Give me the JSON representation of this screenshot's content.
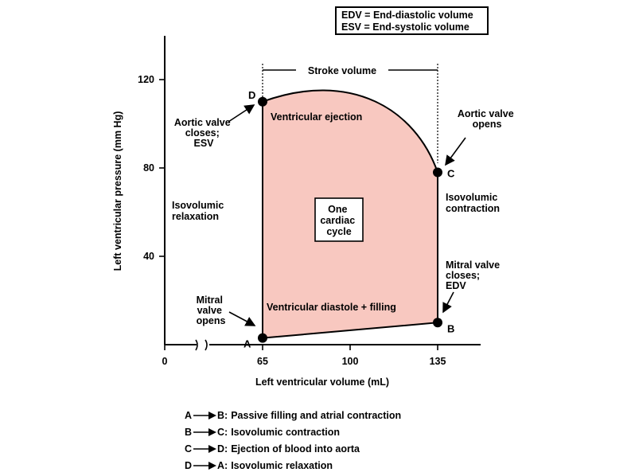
{
  "legend": {
    "edv": "EDV = End-diastolic volume",
    "esv": "ESV = End-systolic volume"
  },
  "axes": {
    "x_label": "Left ventricular volume (mL)",
    "y_label": "Left ventricular pressure (mm Hg)",
    "x_ticks": [
      "0",
      "65",
      "100",
      "135"
    ],
    "y_ticks": [
      "40",
      "80",
      "120"
    ]
  },
  "loop": {
    "points": [
      {
        "id": "A",
        "volume": 65,
        "pressure": 3
      },
      {
        "id": "B",
        "volume": 135,
        "pressure": 10
      },
      {
        "id": "C",
        "volume": 135,
        "pressure": 78
      },
      {
        "id": "D",
        "volume": 65,
        "pressure": 110
      }
    ],
    "fill_color": "#f8c8c0",
    "center_label": [
      "One",
      "cardiac",
      "cycle"
    ]
  },
  "labels": {
    "stroke_volume": "Stroke volume",
    "ventricular_ejection": "Ventricular ejection",
    "ventricular_diastole": "Ventricular diastole + filling",
    "isovolumic_relaxation": [
      "Isovolumic",
      "relaxation"
    ],
    "isovolumic_contraction": [
      "Isovolumic",
      "contraction"
    ],
    "aortic_valve_closes": [
      "Aortic valve",
      "closes;",
      "ESV"
    ],
    "aortic_valve_opens": [
      "Aortic valve",
      "opens"
    ],
    "mitral_valve_opens": [
      "Mitral",
      "valve",
      "opens"
    ],
    "mitral_valve_closes": [
      "Mitral valve",
      "closes;",
      "EDV"
    ]
  },
  "steps": [
    {
      "from": "A",
      "to": "B",
      "text": "Passive filling and atrial contraction"
    },
    {
      "from": "B",
      "to": "C",
      "text": "Isovolumic contraction"
    },
    {
      "from": "C",
      "to": "D",
      "text": "Ejection of blood into aorta"
    },
    {
      "from": "D",
      "to": "A",
      "text": "Isovolumic relaxation"
    }
  ]
}
